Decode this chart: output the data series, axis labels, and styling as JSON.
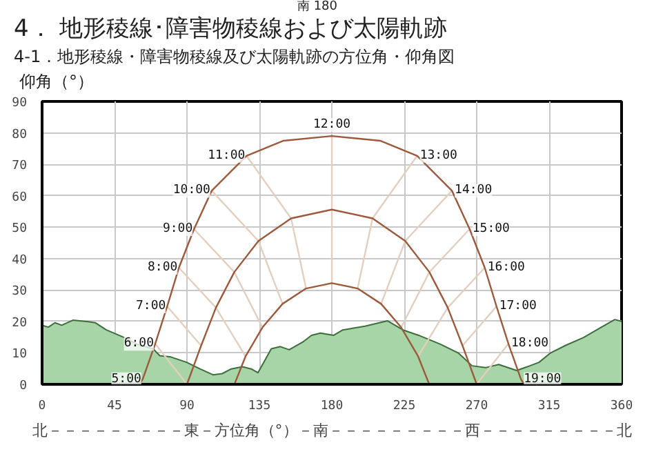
{
  "chart_data": {
    "type": "line",
    "title": "4． 地形稜線･障害物稜線および太陽軌跡",
    "subtitle": "4-1．地形稜線・障害物稜線及び太陽軌跡の方位角・仰角図",
    "ylabel": "仰角（°）",
    "xlabel": "北－－－－－－－－－東－方位角（°）－南－－－－－－－－－西－－－－－－－－－北",
    "xlim": [
      0,
      360
    ],
    "xticks": [
      0,
      45,
      90,
      135,
      180,
      225,
      270,
      315,
      360
    ],
    "ylim": [
      0,
      90
    ],
    "yticks": [
      0,
      10,
      20,
      30,
      40,
      50,
      60,
      70,
      80,
      90
    ],
    "grid": true,
    "marker": "none",
    "line_style": "solid",
    "series": [
      {
        "type": "area",
        "color": "#a8d5a8",
        "x": [
          0,
          3.9,
          8,
          12.2,
          19.1,
          28.8,
          33,
          39.9,
          51,
          59.3,
          69,
          73.1,
          80,
          89.8,
          98.1,
          106.4,
          111.9,
          117.5,
          124.4,
          129.9,
          134.1,
          142.4,
          148,
          153.5,
          161.8,
          167.4,
          172.9,
          181.2,
          186.8,
          200.6,
          214.5,
          224.2,
          233.9,
          247.7,
          258.8,
          267.1,
          275.4,
          283.7,
          294.8,
          303.1,
          308.7,
          315.6,
          325.3,
          336.4,
          347.5,
          355.8,
          360
        ],
        "values": [
          18.8,
          18.2,
          19.6,
          18.8,
          20.4,
          19.9,
          19.6,
          17.3,
          14.9,
          12.7,
          11.3,
          9.1,
          8.7,
          7.0,
          4.9,
          3.0,
          3.4,
          4.9,
          5.6,
          4.9,
          3.7,
          11.3,
          12.0,
          11.0,
          13.4,
          15.6,
          16.3,
          15.6,
          17.3,
          18.5,
          20.2,
          17.3,
          15.6,
          12.7,
          9.9,
          5.9,
          5.3,
          6.3,
          4.4,
          5.9,
          7.0,
          9.9,
          12.4,
          14.9,
          18.2,
          20.6,
          20
        ]
      },
      {
        "type": "line",
        "color": "#e3cfc0",
        "x": [
          70.3,
          90
        ],
        "values": [
          12.9,
          0
        ]
      },
      {
        "type": "line",
        "color": "#e3cfc0",
        "x": [
          77.7,
          98.8
        ],
        "values": [
          24.8,
          12.3
        ]
      },
      {
        "type": "line",
        "color": "#e3cfc0",
        "x": [
          85,
          108,
          126.4
        ],
        "values": [
          37.1,
          24.4,
          8.9
        ]
      },
      {
        "type": "line",
        "color": "#e3cfc0",
        "x": [
          94.4,
          119.4,
          136.9
        ],
        "values": [
          49.4,
          35.7,
          18.1
        ]
      },
      {
        "type": "line",
        "color": "#e3cfc0",
        "x": [
          105.4,
          134.4,
          149.4
        ],
        "values": [
          61.6,
          45.6,
          25.6
        ]
      },
      {
        "type": "line",
        "color": "#e3cfc0",
        "x": [
          127,
          154.7,
          164
        ],
        "values": [
          72.7,
          52.8,
          30.5
        ]
      },
      {
        "type": "line",
        "color": "#e3cfc0",
        "x": [
          180,
          180,
          180
        ],
        "values": [
          79,
          55.6,
          32.2
        ]
      },
      {
        "type": "line",
        "color": "#e3cfc0",
        "x": [
          233,
          205.3,
          196
        ],
        "values": [
          72.7,
          52.8,
          30.5
        ]
      },
      {
        "type": "line",
        "color": "#e3cfc0",
        "x": [
          254.6,
          225.6,
          210.6
        ],
        "values": [
          61.6,
          45.6,
          25.6
        ]
      },
      {
        "type": "line",
        "color": "#e3cfc0",
        "x": [
          265.6,
          240.6,
          223.1
        ],
        "values": [
          49.4,
          35.7,
          18.1
        ]
      },
      {
        "type": "line",
        "color": "#e3cfc0",
        "x": [
          275,
          252,
          233.6
        ],
        "values": [
          37.1,
          24.4,
          8.9
        ]
      },
      {
        "type": "line",
        "color": "#e3cfc0",
        "x": [
          282.3,
          261.2
        ],
        "values": [
          24.8,
          12.3
        ]
      },
      {
        "type": "line",
        "color": "#e3cfc0",
        "x": [
          289.7,
          270
        ],
        "values": [
          12.9,
          0
        ]
      },
      {
        "color": "#9c5a3c",
        "x": [
          60.5,
          62.5,
          70.3,
          77.7,
          85,
          94.4,
          105.4,
          127,
          150,
          180,
          210,
          233,
          254.6,
          265.6,
          275,
          282.3,
          289.7,
          297.5,
          299.5
        ],
        "values": [
          0,
          1.6,
          12.9,
          24.8,
          37.1,
          49.4,
          61.6,
          72.7,
          77.5,
          79,
          77.5,
          72.7,
          61.6,
          49.4,
          37.1,
          24.8,
          12.9,
          1.6,
          0
        ]
      },
      {
        "color": "#9c5a3c",
        "x": [
          90,
          98.8,
          108,
          119.4,
          134.4,
          154.7,
          180,
          205.3,
          225.6,
          240.6,
          252,
          261.2,
          270
        ],
        "values": [
          0,
          12.3,
          24.4,
          35.7,
          45.6,
          52.8,
          55.6,
          52.8,
          45.6,
          35.7,
          24.4,
          12.3,
          0
        ]
      },
      {
        "color": "#9c5a3c",
        "x": [
          119.5,
          126.4,
          136.9,
          149.4,
          164,
          180,
          196,
          210.6,
          223.1,
          233.6,
          240.5
        ],
        "values": [
          0,
          8.9,
          18.1,
          25.6,
          30.5,
          32.2,
          30.5,
          25.6,
          18.1,
          8.9,
          0
        ]
      }
    ],
    "annotations": [
      "南 180",
      {
        "text": "5:00",
        "x": 62.5,
        "y": 1.6
      },
      {
        "text": "6:00",
        "x": 70.3,
        "y": 12.9
      },
      {
        "text": "7:00",
        "x": 77.7,
        "y": 24.8
      },
      {
        "text": "8:00",
        "x": 85,
        "y": 37.1
      },
      {
        "text": "9:00",
        "x": 94.4,
        "y": 49.4
      },
      {
        "text": "10:00",
        "x": 105.4,
        "y": 61.6
      },
      {
        "text": "11:00",
        "x": 127,
        "y": 72.7
      },
      {
        "text": "12:00",
        "x": 180,
        "y": 79
      },
      {
        "text": "13:00",
        "x": 233,
        "y": 72.7
      },
      {
        "text": "14:00",
        "x": 254.6,
        "y": 61.6
      },
      {
        "text": "15:00",
        "x": 265.6,
        "y": 49.4
      },
      {
        "text": "16:00",
        "x": 275,
        "y": 37.1
      },
      {
        "text": "17:00",
        "x": 282.3,
        "y": 24.8
      },
      {
        "text": "18:00",
        "x": 289.7,
        "y": 12.9
      },
      {
        "text": "19:00",
        "x": 297.5,
        "y": 1.6
      }
    ]
  }
}
